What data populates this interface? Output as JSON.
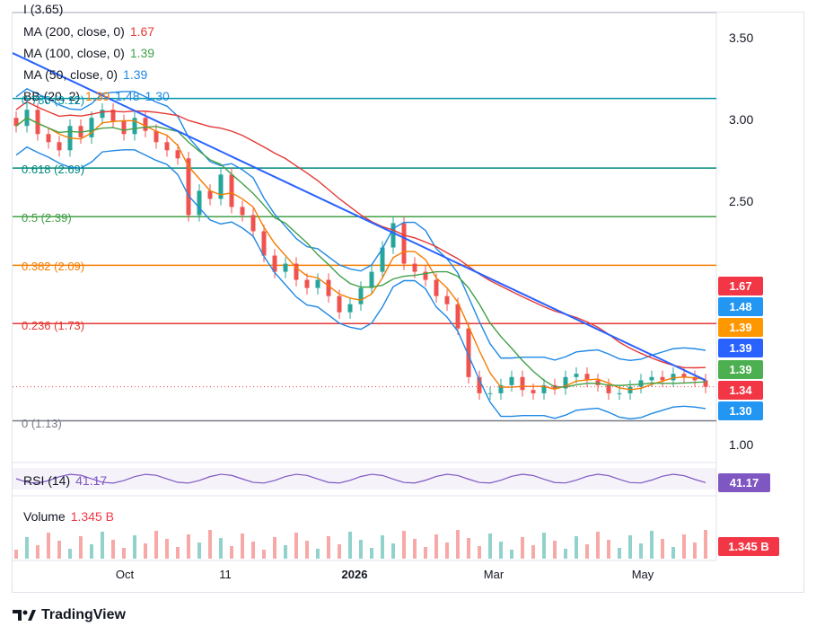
{
  "chart_data": {
    "type": "candlestick",
    "symbol_header": "I (3.65)",
    "ylim": [
      0.9,
      3.65
    ],
    "y_ticks": [
      "3.50",
      "3.00",
      "2.50",
      "1.00"
    ],
    "x_ticks": [
      "Oct",
      "11",
      "2026",
      "Mar",
      "May"
    ],
    "legend": {
      "ma200": {
        "label": "MA (200, close, 0)",
        "value": "1.67",
        "color": "#e53935"
      },
      "ma100": {
        "label": "MA (100, close, 0)",
        "value": "1.39",
        "color": "#43a047"
      },
      "ma50": {
        "label": "MA (50, close, 0)",
        "value": "1.39",
        "color": "#1e88e5"
      },
      "bb": {
        "label": "BB (20, 2)",
        "mid": "1.39",
        "upper": "1.48",
        "lower": "1.30",
        "mid_color": "#f57c00",
        "band_color": "#1e88e5"
      }
    },
    "fib_levels": [
      {
        "label": "0.786 (3.12)",
        "value": 3.12,
        "color": "#0097a7"
      },
      {
        "label": "0.618 (2.69)",
        "value": 2.69,
        "color": "#00897b"
      },
      {
        "label": "0.5 (2.39)",
        "value": 2.39,
        "color": "#43a047"
      },
      {
        "label": "0.382 (2.09)",
        "value": 2.09,
        "color": "#f57c00"
      },
      {
        "label": "0.236 (1.73)",
        "value": 1.73,
        "color": "#e53935"
      },
      {
        "label": "0 (1.13)",
        "value": 1.13,
        "color": "#787b86"
      }
    ],
    "price_badges": [
      {
        "text": "1.67",
        "value": 1.67,
        "color": "#f23645"
      },
      {
        "text": "1.48",
        "value": 1.48,
        "color": "#2196f3"
      },
      {
        "text": "1.39",
        "value": 1.39,
        "color": "#ff9800"
      },
      {
        "text": "1.39",
        "value": 1.39,
        "color": "#2962ff"
      },
      {
        "text": "1.39",
        "value": 1.39,
        "color": "#4caf50"
      },
      {
        "text": "1.34",
        "value": 1.34,
        "color": "#f23645"
      },
      {
        "text": "1.30",
        "value": 1.3,
        "color": "#2196f3"
      }
    ],
    "last_price": 1.34,
    "rsi": {
      "label": "RSI (14)",
      "value": "41.17",
      "color": "#7e57c2"
    },
    "volume": {
      "label": "Volume",
      "value": "1.345 B",
      "badge": "1.345 B",
      "color": "#f23645"
    },
    "close_series": [
      2.95,
      3.05,
      2.9,
      2.85,
      2.8,
      2.95,
      2.88,
      3.0,
      3.05,
      2.98,
      2.9,
      3.0,
      2.92,
      2.85,
      2.8,
      2.75,
      2.4,
      2.55,
      2.5,
      2.65,
      2.45,
      2.4,
      2.3,
      2.15,
      2.05,
      2.1,
      2.0,
      1.95,
      2.0,
      1.9,
      1.8,
      1.85,
      1.95,
      2.05,
      2.2,
      2.35,
      2.1,
      2.05,
      2.0,
      1.9,
      1.85,
      1.7,
      1.4,
      1.3,
      1.3,
      1.35,
      1.4,
      1.32,
      1.3,
      1.35,
      1.33,
      1.4,
      1.42,
      1.38,
      1.35,
      1.3,
      1.3,
      1.34,
      1.38,
      1.4,
      1.38,
      1.42,
      1.4,
      1.38,
      1.34
    ],
    "trendline": {
      "from": 3.4,
      "to": 1.38,
      "color": "#2962ff"
    }
  },
  "branding": {
    "name": "TradingView"
  }
}
